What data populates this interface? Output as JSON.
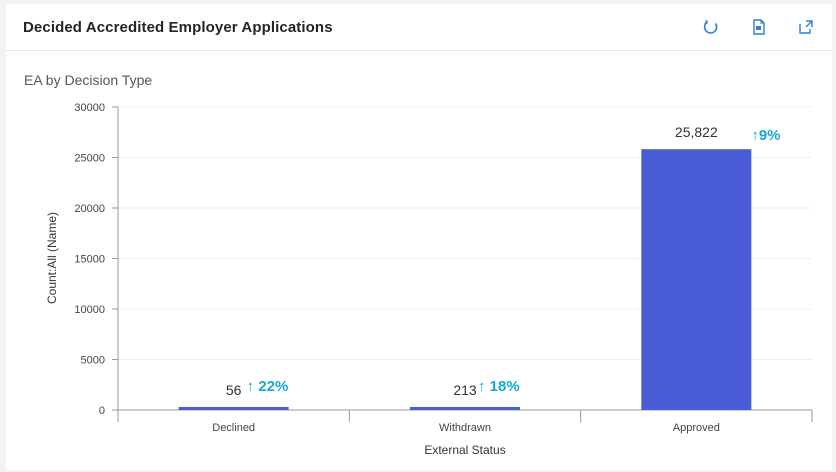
{
  "header": {
    "title": "Decided Accredited Employer Applications",
    "tools": [
      {
        "name": "refresh-icon"
      },
      {
        "name": "export-icon"
      },
      {
        "name": "expand-icon"
      }
    ]
  },
  "chart_data": {
    "type": "bar",
    "title": "EA by Decision Type",
    "xlabel": "External Status",
    "ylabel": "Count:All (Name)",
    "ylim": [
      0,
      30000
    ],
    "yticks": [
      0,
      5000,
      10000,
      15000,
      20000,
      25000,
      30000
    ],
    "categories": [
      "Declined",
      "Withdrawn",
      "Approved"
    ],
    "values": [
      56,
      213,
      25822
    ],
    "value_labels": [
      "56",
      "213",
      "25,822"
    ],
    "change_labels": [
      "↑ 22%",
      "↑ 18%",
      "↑9%"
    ],
    "bar_color": "#4a5bd6",
    "change_color": "#16a9d4",
    "grid": true,
    "legend": "none"
  }
}
